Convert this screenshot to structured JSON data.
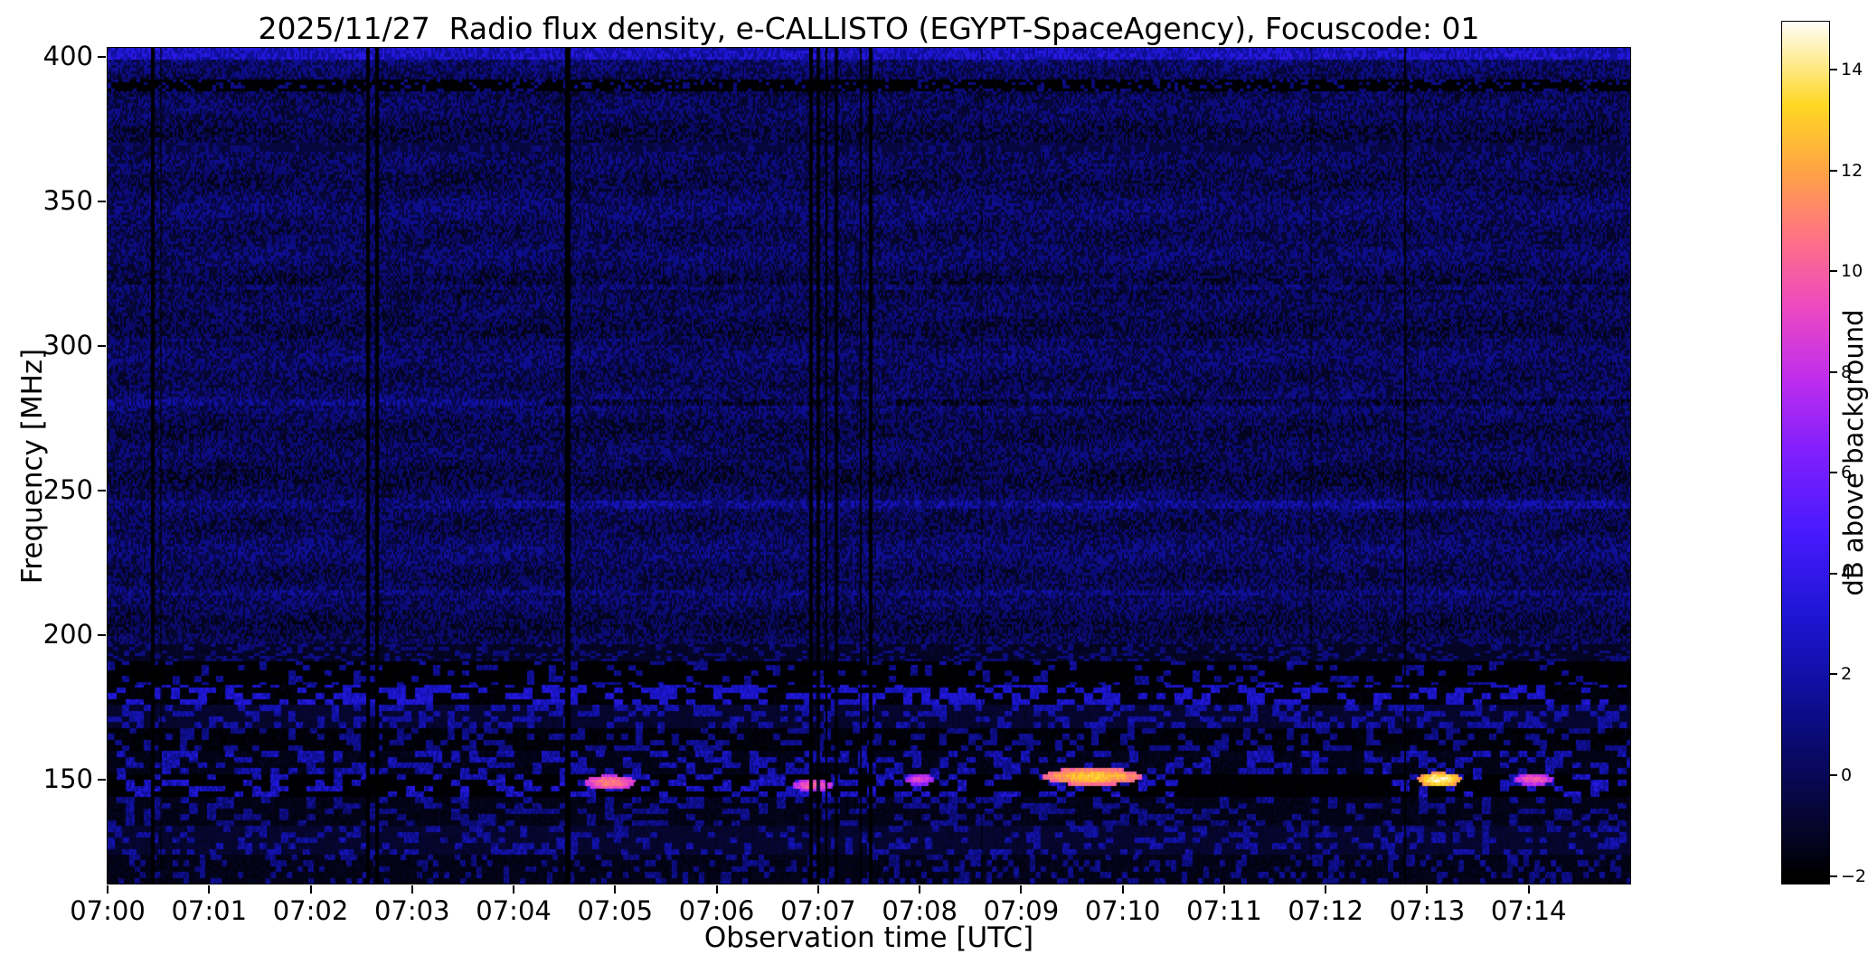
{
  "chart_data": {
    "type": "heatmap",
    "title": "2025/11/27  Radio flux density, e-CALLISTO (EGYPT-SpaceAgency), Focuscode: 01",
    "xlabel": "Observation time [UTC]",
    "ylabel": "Frequency [MHz]",
    "x_ticks": [
      "07:00",
      "07:01",
      "07:02",
      "07:03",
      "07:04",
      "07:05",
      "07:06",
      "07:07",
      "07:08",
      "07:09",
      "07:10",
      "07:11",
      "07:12",
      "07:13",
      "07:14"
    ],
    "x_range_minutes": [
      0,
      15
    ],
    "y_ticks": [
      400,
      350,
      300,
      250,
      200,
      150
    ],
    "y_range_mhz": [
      114,
      403
    ],
    "grid": false,
    "background_level_db": 1.1,
    "colorbar": {
      "label": "dB above background",
      "range": [
        -2.15,
        14.95
      ],
      "colormap": "gnuplot2-like",
      "ticks": [
        {
          "v": 14,
          "label": "14"
        },
        {
          "v": 12,
          "label": "12"
        },
        {
          "v": 10,
          "label": "10"
        },
        {
          "v": 8,
          "label": "8"
        },
        {
          "v": 6,
          "label": "6"
        },
        {
          "v": 4,
          "label": "4"
        },
        {
          "v": 2,
          "label": "2"
        },
        {
          "v": 0,
          "label": "0"
        },
        {
          "v": -2,
          "label": "−2"
        }
      ]
    },
    "colormap_stops": [
      [
        0.0,
        0,
        0,
        0
      ],
      [
        0.05,
        5,
        5,
        40
      ],
      [
        0.15,
        10,
        10,
        110
      ],
      [
        0.22,
        16,
        16,
        160
      ],
      [
        0.3,
        28,
        22,
        210
      ],
      [
        0.4,
        72,
        26,
        255
      ],
      [
        0.5,
        132,
        32,
        252
      ],
      [
        0.58,
        192,
        46,
        238
      ],
      [
        0.66,
        235,
        72,
        196
      ],
      [
        0.74,
        255,
        112,
        138
      ],
      [
        0.82,
        255,
        162,
        72
      ],
      [
        0.9,
        255,
        216,
        36
      ],
      [
        1.0,
        255,
        255,
        255
      ]
    ],
    "hlines": [
      {
        "f": 320.0,
        "half": 1.2,
        "dv": 0.7,
        "t": [
          0,
          15
        ]
      },
      {
        "f": 302.0,
        "half": 0.8,
        "dv": 0.4,
        "t": [
          0,
          15
        ]
      },
      {
        "f": 280.5,
        "half": 1.0,
        "dv": 0.6,
        "t": [
          0,
          4.3
        ]
      },
      {
        "f": 280.5,
        "half": 0.7,
        "dv": -1.0,
        "t": [
          4.3,
          15
        ]
      },
      {
        "f": 245.0,
        "half": 1.2,
        "dv": 0.5,
        "t": [
          0,
          4
        ]
      },
      {
        "f": 245.0,
        "half": 1.2,
        "dv": 1.1,
        "t": [
          4,
          15
        ]
      },
      {
        "f": 215.0,
        "half": 1.0,
        "dv": 0.6,
        "t": [
          0,
          15
        ]
      }
    ],
    "bands": [
      {
        "f": [
          399,
          403.5
        ],
        "style": "boost",
        "add": 2.2
      },
      {
        "f": [
          388,
          392.5
        ],
        "style": "speckle",
        "dark": 0.3,
        "darkV": -2,
        "bright": 0.4,
        "brightV": [
          2.5,
          6
        ],
        "base": [
          1.0,
          2.2
        ],
        "cell": [
          2,
          1
        ]
      },
      {
        "f": [
          367.5,
          370.5
        ],
        "style": "speckle",
        "dark": 0.22,
        "darkV": -0.6,
        "bright": 0.45,
        "brightV": [
          2,
          4
        ],
        "base": [
          0.8,
          1.8
        ],
        "cell": [
          2,
          2
        ]
      },
      {
        "f": [
          190.5,
          197
        ],
        "style": "speckle",
        "dark": 0.2,
        "darkV": -1.2,
        "bright": 0.16,
        "brightV": [
          2.5,
          4.5
        ],
        "base": [
          0.8,
          2.0
        ],
        "cell": [
          3,
          1
        ]
      },
      {
        "f": [
          183,
          190.5
        ],
        "style": "speckle",
        "dark": 0.3,
        "darkV": -2,
        "bright": 0.28,
        "brightV": [
          3,
          7
        ],
        "base": [
          1.4,
          3.2
        ],
        "cell": [
          4,
          2
        ]
      },
      {
        "f": [
          176,
          183
        ],
        "style": "speckle",
        "dark": 0.1,
        "darkV": -1.8,
        "bright": 0.05,
        "brightV": [
          5,
          8
        ],
        "base": [
          2.6,
          4.4
        ],
        "cell": [
          5,
          2
        ]
      },
      {
        "f": [
          168,
          176
        ],
        "style": "speckle",
        "dark": 0.14,
        "darkV": -1.0,
        "bright": 0.05,
        "brightV": [
          5,
          7
        ],
        "base": [
          1.8,
          3.6
        ],
        "cell": [
          4,
          2
        ]
      },
      {
        "f": [
          160,
          168
        ],
        "style": "speckle",
        "dark": 0.22,
        "darkV": -1.8,
        "bright": 0.06,
        "brightV": [
          4,
          6
        ],
        "base": [
          1.0,
          2.4
        ],
        "cell": [
          4,
          2
        ]
      },
      {
        "f": [
          152,
          160
        ],
        "style": "speckle",
        "dark": 0.12,
        "darkV": -1.5,
        "bright": 0.1,
        "brightV": [
          5,
          8
        ],
        "base": [
          2.0,
          4.4
        ],
        "cell": [
          5,
          2
        ],
        "hot": true
      },
      {
        "f": [
          144,
          152
        ],
        "style": "speckle",
        "dark": 0.15,
        "darkV": -2,
        "bright": 0.16,
        "brightV": [
          6,
          9
        ],
        "base": [
          2.4,
          5.2
        ],
        "cell": [
          5,
          2
        ],
        "hot": true,
        "main": true
      },
      {
        "f": [
          134,
          144
        ],
        "style": "speckle",
        "dark": 0.18,
        "darkV": -1.5,
        "bright": 0.09,
        "brightV": [
          5,
          7.5
        ],
        "base": [
          1.2,
          3.2
        ],
        "cell": [
          5,
          2
        ]
      },
      {
        "f": [
          124,
          134
        ],
        "style": "speckle",
        "dark": 0.2,
        "darkV": -1.0,
        "bright": 0.05,
        "brightV": [
          4,
          6
        ],
        "base": [
          1.5,
          3.4
        ],
        "cell": [
          4,
          2
        ]
      },
      {
        "f": [
          113,
          124
        ],
        "style": "speckle",
        "dark": 0.25,
        "darkV": -1.5,
        "bright": 0.04,
        "brightV": [
          3.5,
          5
        ],
        "base": [
          1.0,
          2.7
        ],
        "cell": [
          3,
          2
        ]
      }
    ],
    "hot_windows": [
      {
        "t": [
          4.4,
          5.6
        ],
        "p": 0.22,
        "v": [
          6,
          12
        ]
      },
      {
        "t": [
          6.3,
          7.6
        ],
        "p": 0.2,
        "v": [
          6,
          11
        ]
      },
      {
        "t": [
          8.75,
          10.35
        ],
        "p": 0.38,
        "v": [
          7,
          14.5
        ]
      },
      {
        "t": [
          12.9,
          13.45
        ],
        "p": 0.3,
        "v": [
          8,
          15
        ]
      },
      {
        "t": [
          13.85,
          14.45
        ],
        "p": 0.25,
        "v": [
          7,
          13
        ]
      }
    ],
    "dark_windows": [
      [
        10.55,
        12.65
      ]
    ],
    "hot_spots": [
      {
        "t": 9.7,
        "f": 151,
        "rt": 0.5,
        "rf": 3.0,
        "v": 13
      },
      {
        "t": 13.12,
        "f": 150,
        "rt": 0.22,
        "rf": 2.5,
        "v": 14.5
      },
      {
        "t": 4.95,
        "f": 149,
        "rt": 0.25,
        "rf": 2.5,
        "v": 11
      },
      {
        "t": 6.95,
        "f": 148,
        "rt": 0.2,
        "rf": 2.0,
        "v": 10
      },
      {
        "t": 14.05,
        "f": 150,
        "rt": 0.2,
        "rf": 2.0,
        "v": 10
      },
      {
        "t": 8.0,
        "f": 150,
        "rt": 0.15,
        "rf": 2.0,
        "v": 9
      }
    ],
    "vertical_dropouts": [
      {
        "t": 0.45,
        "w": 0.035,
        "s": 1.0
      },
      {
        "t": 0.53,
        "w": 0.02,
        "s": 0.6
      },
      {
        "t": 2.57,
        "w": 0.032,
        "s": 1.0
      },
      {
        "t": 2.65,
        "w": 0.035,
        "s": 1.0
      },
      {
        "t": 4.53,
        "w": 0.05,
        "s": 1.0
      },
      {
        "t": 6.93,
        "w": 0.022,
        "s": 1.0
      },
      {
        "t": 7.0,
        "w": 0.022,
        "s": 0.9
      },
      {
        "t": 7.08,
        "w": 0.03,
        "s": 1.0
      },
      {
        "t": 7.18,
        "w": 0.02,
        "s": 0.85
      },
      {
        "t": 7.42,
        "w": 0.025,
        "s": 0.9
      },
      {
        "t": 7.52,
        "w": 0.035,
        "s": 1.0
      },
      {
        "t": 8.62,
        "w": 0.015,
        "s": 0.45
      },
      {
        "t": 11.85,
        "w": 0.018,
        "s": 0.5
      },
      {
        "t": 12.78,
        "w": 0.03,
        "s": 0.95
      }
    ]
  }
}
